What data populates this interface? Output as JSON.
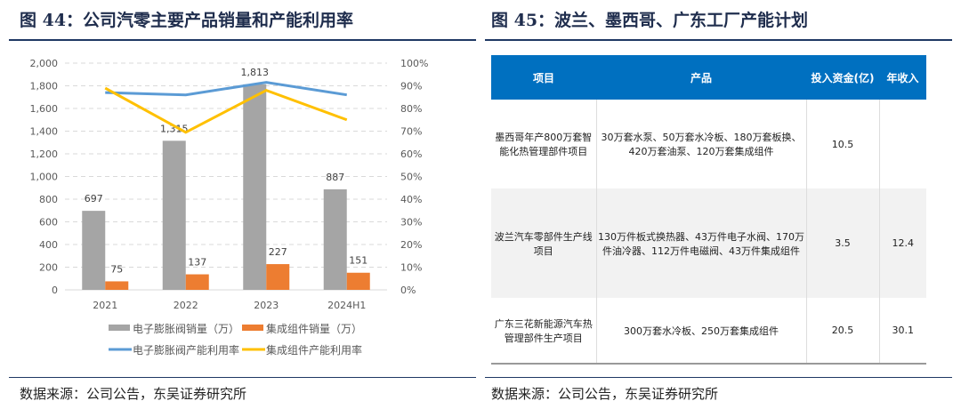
{
  "left": {
    "title": "图 44：公司汽零主要产品销量和产能利用率",
    "source": "数据来源：公司公告，东吴证券研究所"
  },
  "right": {
    "title": "图 45：波兰、墨西哥、广东工厂产能计划",
    "source": "数据来源：公司公告，东吴证券研究所",
    "headers": [
      "项目",
      "产品",
      "投入资金(亿)",
      "年收入"
    ],
    "rows": [
      [
        "墨西哥年产800万套智能化热管理部件项目",
        "30万套水泵、50万套水冷板、180万套板换、420万套油泵、120万套集成组件",
        "10.5",
        ""
      ],
      [
        "波兰汽车零部件生产线项目",
        "130万件板式换热器、43万件电子水阀、170万件油冷器、112万件电磁阀、43万件集成组件",
        "3.5",
        "12.4"
      ],
      [
        "广东三花新能源汽车热管理部件生产项目",
        "300万套水冷板、250万套集成组件",
        "20.5",
        "30.1"
      ]
    ]
  },
  "chart_data": {
    "type": "bar",
    "categories": [
      "2021",
      "2022",
      "2023",
      "2024H1"
    ],
    "series": [
      {
        "name": "电子膨胀阀销量（万）",
        "kind": "bar",
        "axis": "left",
        "color": "#a5a5a5",
        "values": [
          697,
          1315,
          1813,
          887
        ]
      },
      {
        "name": "集成组件销量（万）",
        "kind": "bar",
        "axis": "left",
        "color": "#ed7d31",
        "values": [
          75,
          137,
          227,
          151
        ]
      },
      {
        "name": "电子膨胀阀产能利用率",
        "kind": "line",
        "axis": "right",
        "color": "#5b9bd5",
        "values": [
          87,
          86,
          91.5,
          86
        ]
      },
      {
        "name": "集成组件产能利用率",
        "kind": "line",
        "axis": "right",
        "color": "#ffc000",
        "values": [
          89,
          69.5,
          88,
          75
        ]
      }
    ],
    "ylim": [
      0,
      2000
    ],
    "yticks": [
      "0",
      "200",
      "400",
      "600",
      "800",
      "1,000",
      "1,200",
      "1,400",
      "1,600",
      "1,800",
      "2,000"
    ],
    "y2lim": [
      0,
      100
    ],
    "y2ticks": [
      "0%",
      "10%",
      "20%",
      "30%",
      "40%",
      "50%",
      "60%",
      "70%",
      "80%",
      "90%",
      "100%"
    ],
    "data_labels": [
      [
        "697",
        "1,315",
        "1,813",
        "887"
      ],
      [
        "75",
        "137",
        "227",
        "151"
      ]
    ],
    "legend": "bottom",
    "grid": true
  }
}
